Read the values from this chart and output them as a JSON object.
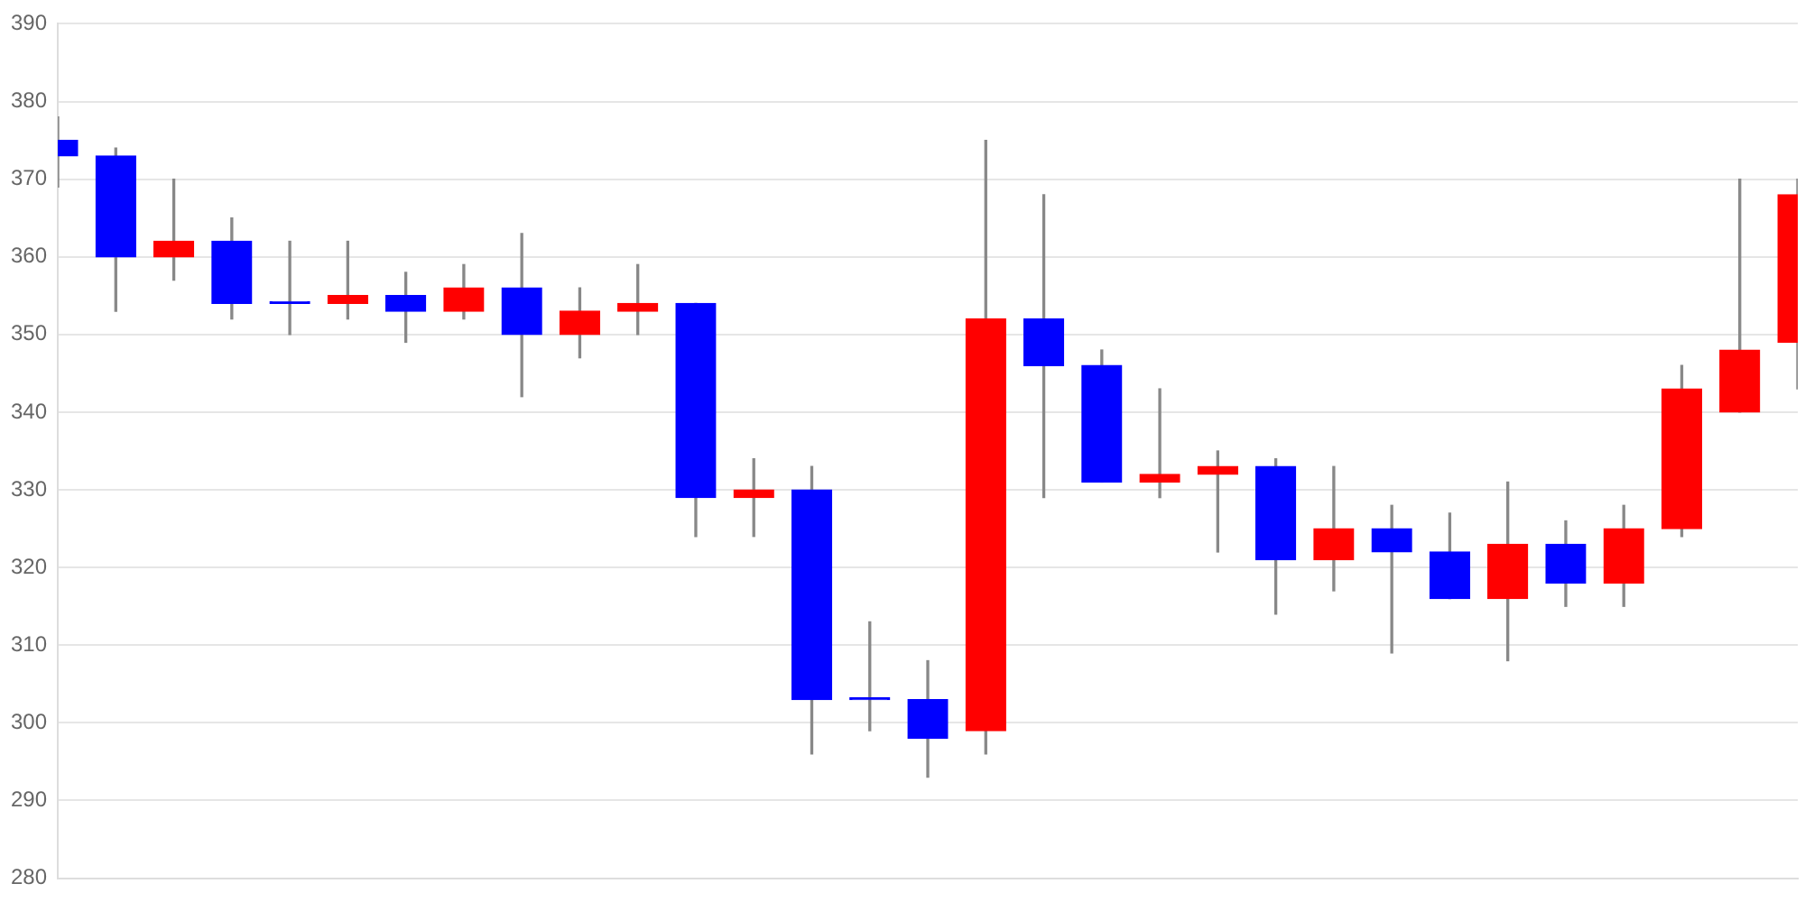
{
  "chart_data": {
    "type": "candlestick",
    "categories": [
      null,
      null,
      null,
      null,
      null,
      null,
      null,
      null,
      null,
      null,
      null,
      null,
      null,
      null,
      null,
      null,
      null,
      null,
      null,
      null,
      null,
      null,
      null,
      null,
      null,
      null,
      null,
      null,
      null,
      null,
      null
    ],
    "ohlc": [
      [
        375,
        378,
        369,
        373
      ],
      [
        373,
        374,
        353,
        360
      ],
      [
        360,
        370,
        357,
        362
      ],
      [
        362,
        365,
        352,
        354
      ],
      [
        354,
        362,
        350,
        354
      ],
      [
        354,
        362,
        352,
        355
      ],
      [
        355,
        358,
        349,
        353
      ],
      [
        353,
        359,
        352,
        356
      ],
      [
        356,
        363,
        342,
        350
      ],
      [
        350,
        356,
        347,
        353
      ],
      [
        353,
        359,
        350,
        354
      ],
      [
        354,
        354,
        324,
        329
      ],
      [
        329,
        334,
        324,
        330
      ],
      [
        330,
        333,
        296,
        303
      ],
      [
        303,
        313,
        299,
        303
      ],
      [
        303,
        308,
        293,
        298
      ],
      [
        299,
        375,
        296,
        352
      ],
      [
        352,
        368,
        329,
        346
      ],
      [
        346,
        348,
        331,
        331
      ],
      [
        331,
        343,
        329,
        332
      ],
      [
        332,
        335,
        322,
        333
      ],
      [
        333,
        334,
        314,
        321
      ],
      [
        321,
        333,
        317,
        325
      ],
      [
        325,
        328,
        309,
        322
      ],
      [
        322,
        327,
        316,
        316
      ],
      [
        316,
        331,
        308,
        323
      ],
      [
        323,
        326,
        315,
        318
      ],
      [
        318,
        328,
        315,
        325
      ],
      [
        325,
        346,
        324,
        343
      ],
      [
        340,
        370,
        340,
        348
      ],
      [
        349,
        370,
        343,
        368
      ]
    ],
    "colors": [
      "#0000ff",
      "#0000ff",
      "#ff0000",
      "#0000ff",
      "#0000ff",
      "#ff0000",
      "#0000ff",
      "#ff0000",
      "#0000ff",
      "#ff0000",
      "#ff0000",
      "#0000ff",
      "#ff0000",
      "#0000ff",
      "#0000ff",
      "#0000ff",
      "#ff0000",
      "#0000ff",
      "#0000ff",
      "#ff0000",
      "#ff0000",
      "#0000ff",
      "#ff0000",
      "#0000ff",
      "#0000ff",
      "#ff0000",
      "#0000ff",
      "#ff0000",
      "#ff0000",
      "#ff0000",
      "#ff0000"
    ],
    "ylim": [
      280,
      390
    ],
    "yticks": [
      280,
      290,
      300,
      310,
      320,
      330,
      340,
      350,
      360,
      370,
      380,
      390
    ],
    "grid": "y",
    "tick_labels": "y"
  }
}
